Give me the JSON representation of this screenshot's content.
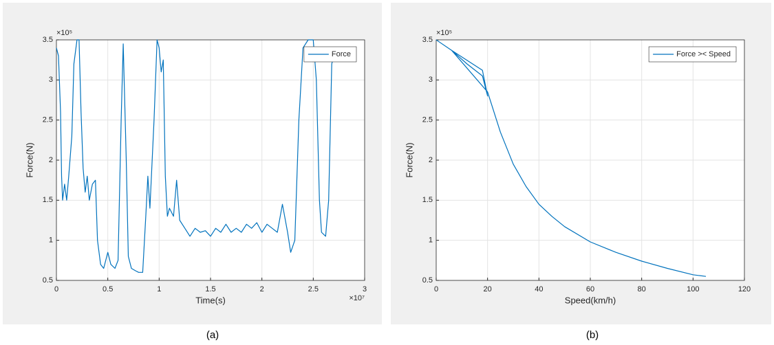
{
  "chart_data": [
    {
      "type": "line",
      "caption": "(a)",
      "x_label": "Time(s)",
      "y_label": "Force(N)",
      "x_scale_label": "×10⁷",
      "y_scale_label": "×10⁵",
      "xlim": [
        0,
        3
      ],
      "xticks": [
        0,
        0.5,
        1,
        1.5,
        2,
        2.5,
        3
      ],
      "ylim": [
        0.5,
        3.5
      ],
      "yticks": [
        0.5,
        1,
        1.5,
        2,
        2.5,
        3,
        3.5
      ],
      "grid": true,
      "legend": "northeast",
      "x": [
        0,
        0.02,
        0.04,
        0.05,
        0.06,
        0.08,
        0.1,
        0.12,
        0.15,
        0.17,
        0.2,
        0.22,
        0.24,
        0.26,
        0.28,
        0.3,
        0.32,
        0.35,
        0.38,
        0.4,
        0.43,
        0.46,
        0.5,
        0.53,
        0.57,
        0.6,
        0.63,
        0.65,
        0.68,
        0.7,
        0.73,
        0.77,
        0.8,
        0.84,
        0.87,
        0.89,
        0.91,
        0.95,
        0.98,
        1.0,
        1.02,
        1.04,
        1.06,
        1.08,
        1.1,
        1.14,
        1.17,
        1.2,
        1.25,
        1.3,
        1.35,
        1.4,
        1.45,
        1.5,
        1.55,
        1.6,
        1.65,
        1.7,
        1.75,
        1.8,
        1.85,
        1.9,
        1.95,
        2.0,
        2.05,
        2.1,
        2.15,
        2.2,
        2.25,
        2.28,
        2.32,
        2.36,
        2.4,
        2.45,
        2.5,
        2.53,
        2.56,
        2.58,
        2.62,
        2.65,
        2.68,
        2.7
      ],
      "series": [
        {
          "name": "Force",
          "color": "#0072bd",
          "values": [
            3.4,
            3.3,
            2.6,
            1.8,
            1.5,
            1.7,
            1.5,
            1.8,
            2.3,
            3.2,
            3.5,
            3.5,
            2.6,
            1.9,
            1.6,
            1.8,
            1.5,
            1.7,
            1.75,
            1.0,
            0.7,
            0.65,
            0.85,
            0.7,
            0.65,
            0.75,
            2.5,
            3.45,
            2.0,
            0.8,
            0.65,
            0.62,
            0.6,
            0.6,
            1.3,
            1.8,
            1.4,
            2.5,
            3.5,
            3.4,
            3.1,
            3.25,
            1.8,
            1.3,
            1.4,
            1.3,
            1.75,
            1.25,
            1.15,
            1.05,
            1.15,
            1.1,
            1.12,
            1.05,
            1.15,
            1.1,
            1.2,
            1.1,
            1.15,
            1.1,
            1.2,
            1.15,
            1.22,
            1.1,
            1.2,
            1.15,
            1.1,
            1.45,
            1.1,
            0.85,
            1.0,
            2.5,
            3.4,
            3.5,
            3.5,
            3.0,
            1.5,
            1.1,
            1.05,
            1.5,
            3.2,
            3.3
          ]
        }
      ]
    },
    {
      "type": "line",
      "caption": "(b)",
      "x_label": "Speed(km/h)",
      "y_label": "Force(N)",
      "y_scale_label": "×10⁵",
      "xlim": [
        0,
        120
      ],
      "xticks": [
        0,
        20,
        40,
        60,
        80,
        100,
        120
      ],
      "ylim": [
        0.5,
        3.5
      ],
      "yticks": [
        0.5,
        1,
        1.5,
        2,
        2.5,
        3,
        3.5
      ],
      "grid": true,
      "legend": "northeast",
      "x": [
        0,
        6,
        18,
        20,
        18,
        12,
        6,
        20,
        25,
        30,
        35,
        40,
        45,
        50,
        60,
        70,
        80,
        90,
        100,
        105
      ],
      "series": [
        {
          "name": "Force >< Speed",
          "color": "#0072bd",
          "values": [
            3.5,
            3.37,
            3.12,
            2.8,
            3.05,
            3.2,
            3.37,
            2.85,
            2.35,
            1.95,
            1.67,
            1.45,
            1.3,
            1.17,
            0.98,
            0.85,
            0.74,
            0.65,
            0.57,
            0.55
          ]
        }
      ]
    }
  ]
}
